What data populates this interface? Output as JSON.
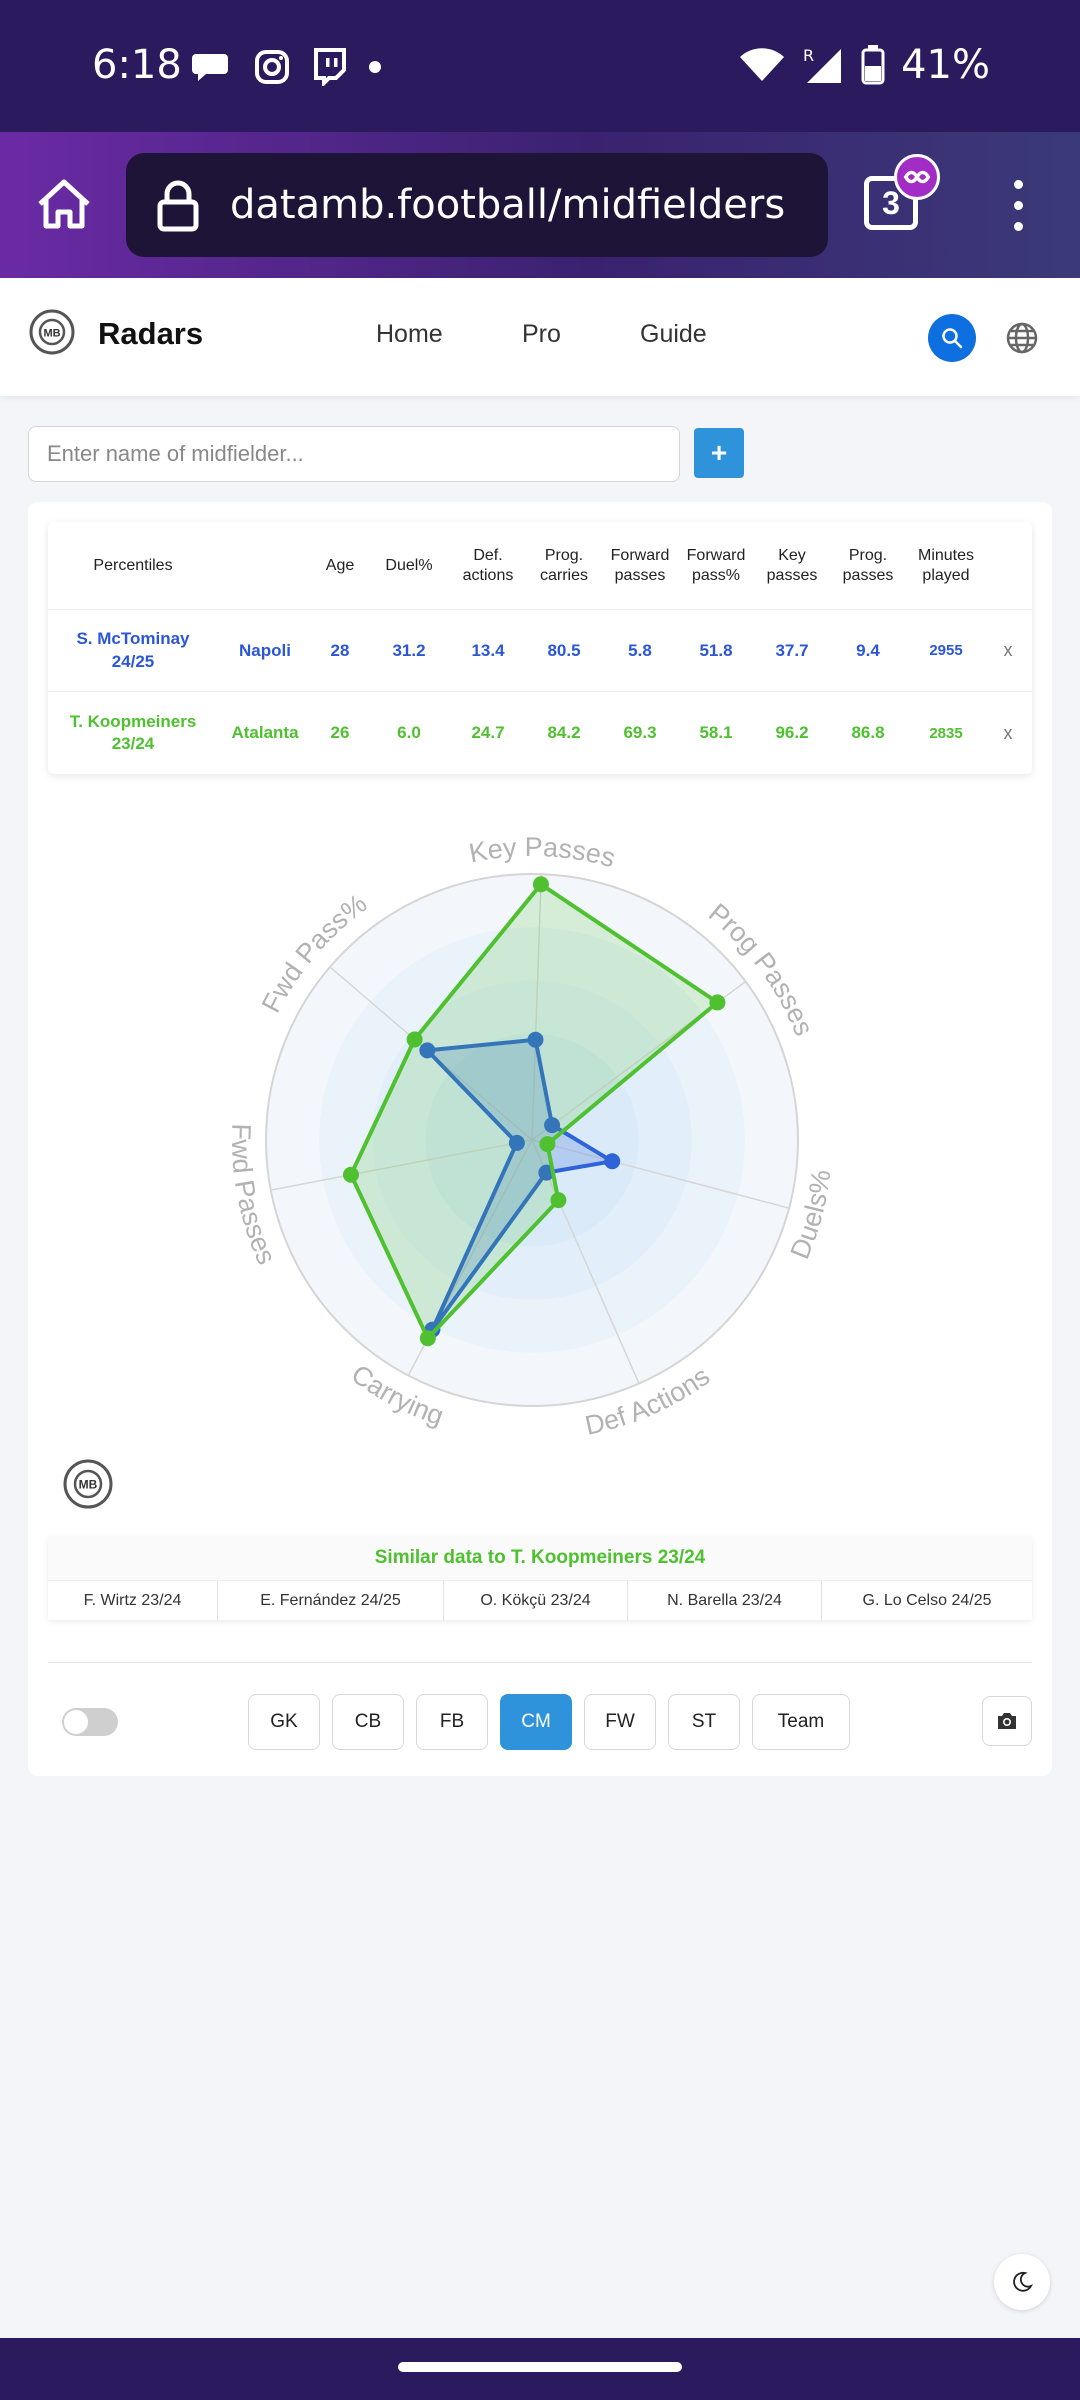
{
  "status_bar": {
    "time": "6:18",
    "battery": "41%",
    "colors": {
      "bg": "#2b1a5e"
    }
  },
  "browser": {
    "url": "datamb.football/midfielders",
    "tab_count": "3"
  },
  "site": {
    "title": "Radars",
    "nav": {
      "home": "Home",
      "pro": "Pro",
      "guide": "Guide"
    }
  },
  "search": {
    "placeholder": "Enter name of midfielder...",
    "add_label": "+"
  },
  "table": {
    "headers": {
      "percentiles": "Percentiles",
      "age": "Age",
      "duel": "Duel%",
      "def1": "Def.",
      "def2": "actions",
      "prog1": "Prog.",
      "prog2": "carries",
      "fwd1": "Forward",
      "fwd2": "passes",
      "fwdp1": "Forward",
      "fwdp2": "pass%",
      "key1": "Key",
      "key2": "passes",
      "progp1": "Prog.",
      "progp2": "passes",
      "min1": "Minutes",
      "min2": "played"
    },
    "rows": [
      {
        "name1": "S. McTominay",
        "name2": "24/25",
        "club": "Napoli",
        "age": "28",
        "duel": "31.2",
        "def": "13.4",
        "prog_carries": "80.5",
        "fwd_passes": "5.8",
        "fwd_pass_pct": "51.8",
        "key_passes": "37.7",
        "prog_passes": "9.4",
        "minutes": "2955",
        "remove": "x",
        "color": "#2b56d8"
      },
      {
        "name1": "T. Koopmeiners",
        "name2": "23/24",
        "club": "Atalanta",
        "age": "26",
        "duel": "6.0",
        "def": "24.7",
        "prog_carries": "84.2",
        "fwd_passes": "69.3",
        "fwd_pass_pct": "58.1",
        "key_passes": "96.2",
        "prog_passes": "86.8",
        "minutes": "2835",
        "remove": "x",
        "color": "#4fc130"
      }
    ]
  },
  "chart_data": {
    "type": "radar",
    "axes": [
      "Key Passes",
      "Prog Passes",
      "Duels%",
      "Def Actions",
      "Carrying",
      "Fwd Passes",
      "Fwd Pass%"
    ],
    "range": [
      0,
      100
    ],
    "series": [
      {
        "name": "S. McTominay 24/25",
        "color": "#2f64d8",
        "values": [
          37.7,
          9.4,
          31.2,
          13.4,
          80.5,
          5.8,
          51.8
        ]
      },
      {
        "name": "T. Koopmeiners 23/24",
        "color": "#4fc130",
        "values": [
          96.2,
          86.8,
          6.0,
          24.7,
          84.2,
          69.3,
          58.1
        ]
      }
    ]
  },
  "similar": {
    "title": "Similar data to T. Koopmeiners 23/24",
    "items": [
      "F. Wirtz 23/24",
      "E. Fernández 24/25",
      "O. Kökçü 23/24",
      "N. Barella 23/24",
      "G. Lo Celso 24/25"
    ]
  },
  "positions": [
    "GK",
    "CB",
    "FB",
    "CM",
    "FW",
    "ST",
    "Team"
  ],
  "active_position": "CM",
  "icons": {
    "home": "home-icon",
    "lock": "lock-icon",
    "tabs": "tabs-icon",
    "menu": "menu-icon",
    "logo": "mb-logo-icon",
    "search": "search-icon",
    "globe": "globe-icon",
    "camera": "camera-icon",
    "moon": "moon-icon"
  }
}
